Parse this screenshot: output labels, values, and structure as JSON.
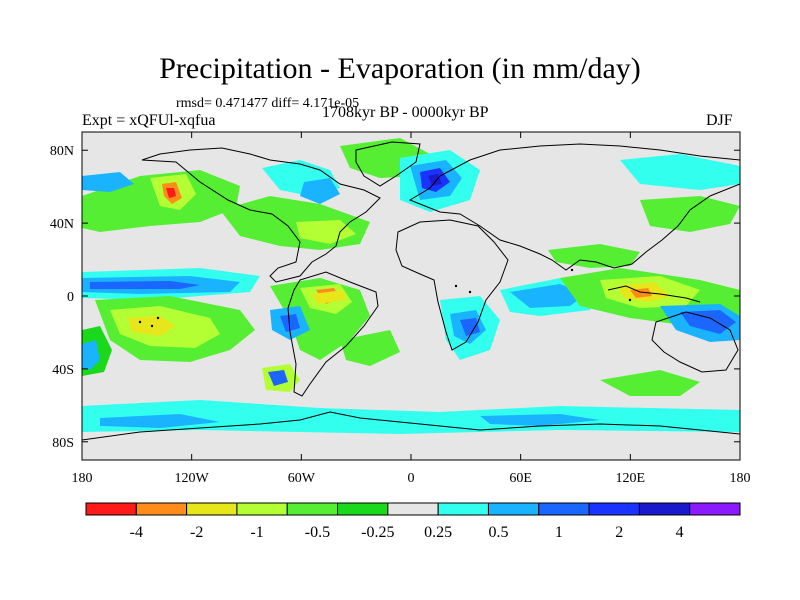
{
  "header": {
    "title": "Precipitation - Evaporation (in mm/day)",
    "stats": "rmsd= 0.471477 diff= 4.171e-05",
    "experiment": "Expt = xQFUl-xqfua",
    "period": "1708kyr BP - 0000kyr BP",
    "season": "DJF"
  },
  "chart_data": {
    "type": "heatmap",
    "title": "Precipitation - Evaporation (in mm/day)",
    "x_ticks": [
      "180",
      "120W",
      "60W",
      "0",
      "60E",
      "120E",
      "180"
    ],
    "y_ticks": [
      "80N",
      "40N",
      "0",
      "40S",
      "80S"
    ],
    "xlim": [
      -180,
      180
    ],
    "ylim": [
      -90,
      90
    ],
    "colorbar": {
      "labels": [
        "-4",
        "-2",
        "-1",
        "-0.5",
        "-0.25",
        "0.25",
        "0.5",
        "1",
        "2",
        "4"
      ],
      "colors": [
        "#ff1a1a",
        "#ff8c1a",
        "#e6e61a",
        "#b3ff33",
        "#55ee33",
        "#1ad91a",
        "#e6e6e6",
        "#33ffee",
        "#1ab3ff",
        "#1a66ff",
        "#1a33ff",
        "#1a1acc",
        "#8c1aff"
      ]
    }
  }
}
